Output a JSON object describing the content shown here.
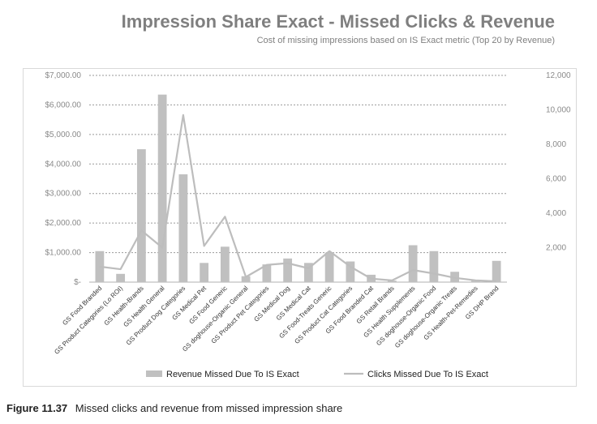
{
  "chart_data": {
    "type": "bar",
    "title": "Impression Share Exact - Missed Clicks & Revenue",
    "subtitle": "Cost of missing impressions based on IS Exact metric (Top 20 by Revenue)",
    "categories": [
      "GS Food Branded",
      "GS Product Categories (Lo ROI)",
      "GS Health-Brands",
      "GS Health General",
      "GS Product Dog Categories",
      "GS Medical Pet",
      "GS Food Generic",
      "GS doghouse-Organic General",
      "GS Product Pet Categories",
      "GS Medical Dog",
      "GS Medical Cat",
      "GS Food-Treats Generic",
      "GS Product Cat Categories",
      "GS Food Branded Cat",
      "GS Retail Brands",
      "GS Health Supplements",
      "GS doghouse-Organic Food",
      "GS doghouse-Organic Treats",
      "GS Health-Pet-Remedies",
      "GS DHP Brand"
    ],
    "series": [
      {
        "name": "Revenue Missed Due To IS Exact",
        "type": "bar",
        "axis": "left",
        "color": "#c0c0c0",
        "values": [
          1050,
          280,
          4500,
          6350,
          3650,
          650,
          1200,
          200,
          600,
          800,
          650,
          1000,
          700,
          250,
          50,
          1250,
          1050,
          350,
          80,
          720
        ]
      },
      {
        "name": "Clicks Missed Due To IS Exact",
        "type": "line",
        "axis": "right",
        "color": "#bdbdbd",
        "values": [
          900,
          750,
          3000,
          2000,
          9700,
          2100,
          3800,
          300,
          1000,
          1100,
          800,
          1800,
          900,
          200,
          100,
          700,
          500,
          250,
          100,
          50
        ]
      }
    ],
    "y_left": {
      "min": 0,
      "max": 7000,
      "ticks": [
        0,
        1000,
        2000,
        3000,
        4000,
        5000,
        6000,
        7000
      ],
      "tick_labels": [
        "$-",
        "$1,000.00",
        "$2,000.00",
        "$3,000.00",
        "$4,000.00",
        "$5,000.00",
        "$6,000.00",
        "$7,000.00"
      ]
    },
    "y_right": {
      "min": 0,
      "max": 12000,
      "ticks": [
        0,
        2000,
        4000,
        6000,
        8000,
        10000,
        12000
      ],
      "tick_labels": [
        "",
        "2,000",
        "4,000",
        "6,000",
        "8,000",
        "10,000",
        "12,000"
      ]
    },
    "grid": true,
    "legend_position": "bottom"
  },
  "caption": {
    "number": "Figure 11.37",
    "text": "Missed clicks and revenue from missed impression share"
  }
}
